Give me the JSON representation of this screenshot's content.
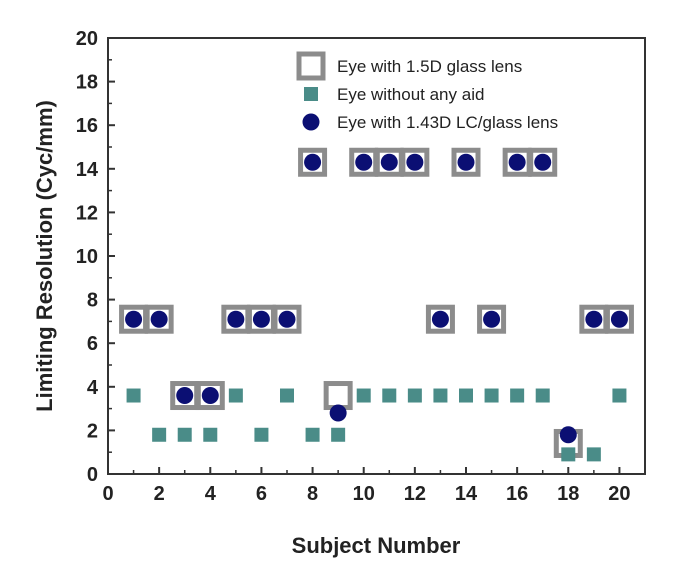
{
  "chart_data": {
    "type": "scatter",
    "title": "",
    "xlabel": "Subject Number",
    "ylabel": "Limiting Resolution (Cyc/mm)",
    "xlim": [
      0,
      21
    ],
    "ylim": [
      0,
      20
    ],
    "xticks": [
      0,
      2,
      4,
      6,
      8,
      10,
      12,
      14,
      16,
      18,
      20
    ],
    "yticks": [
      0,
      2,
      4,
      6,
      8,
      10,
      12,
      14,
      16,
      18,
      20
    ],
    "grid": false,
    "legend_position": "top-right",
    "series": [
      {
        "name": "Eye with 1.5D glass lens",
        "marker": "hollow-square",
        "color": "#8c8c8c",
        "x": [
          1,
          2,
          3,
          4,
          5,
          6,
          7,
          8,
          9,
          10,
          11,
          12,
          13,
          14,
          15,
          16,
          17,
          18,
          19,
          20
        ],
        "y": [
          7.1,
          7.1,
          3.6,
          3.6,
          7.1,
          7.1,
          7.1,
          14.3,
          3.6,
          14.3,
          14.3,
          14.3,
          7.1,
          14.3,
          7.1,
          14.3,
          14.3,
          1.4,
          7.1,
          7.1
        ]
      },
      {
        "name": "Eye without any aid",
        "marker": "filled-square",
        "color": "#4a8c88",
        "x": [
          1,
          2,
          3,
          4,
          5,
          6,
          7,
          8,
          9,
          10,
          11,
          12,
          13,
          14,
          15,
          16,
          17,
          18,
          19,
          20
        ],
        "y": [
          3.6,
          1.8,
          1.8,
          1.8,
          3.6,
          1.8,
          3.6,
          1.8,
          1.8,
          3.6,
          3.6,
          3.6,
          3.6,
          3.6,
          3.6,
          3.6,
          3.6,
          0.9,
          0.9,
          3.6
        ]
      },
      {
        "name": "Eye with 1.43D LC/glass lens",
        "marker": "circle",
        "color": "#0b0f73",
        "x": [
          1,
          2,
          3,
          4,
          5,
          6,
          7,
          8,
          9,
          10,
          11,
          12,
          13,
          14,
          15,
          16,
          17,
          18,
          19,
          20
        ],
        "y": [
          7.1,
          7.1,
          3.6,
          3.6,
          7.1,
          7.1,
          7.1,
          14.3,
          2.8,
          14.3,
          14.3,
          14.3,
          7.1,
          14.3,
          7.1,
          14.3,
          14.3,
          1.8,
          7.1,
          7.1
        ]
      }
    ]
  }
}
